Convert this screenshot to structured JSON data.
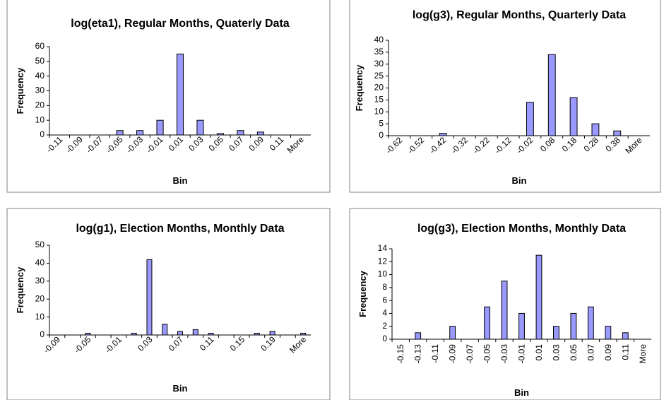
{
  "chart_data": [
    {
      "type": "bar",
      "title": "log(eta1), Regular Months, Quaterly Data",
      "xlabel": "Bin",
      "ylabel": "Frequency",
      "categories": [
        "-0.11",
        "-0.09",
        "-0.07",
        "-0.05",
        "-0.03",
        "-0.01",
        "0.01",
        "0.03",
        "0.05",
        "0.07",
        "0.09",
        "0.11",
        "More"
      ],
      "values": [
        0,
        0,
        0,
        3,
        3,
        10,
        55,
        10,
        1,
        3,
        2,
        0,
        0
      ],
      "color": "#9999ff",
      "ylim": [
        0,
        60
      ],
      "yticks": [
        0,
        10,
        20,
        30,
        40,
        50,
        60
      ]
    },
    {
      "type": "bar",
      "title": "log(g3), Regular Months, Quarterly Data",
      "xlabel": "Bin",
      "ylabel": "Frequency",
      "categories": [
        "-0.62",
        "-0.52",
        "-0.42",
        "-0.32",
        "-0.22",
        "-0.12",
        "-0.02",
        "0.08",
        "0.18",
        "0.28",
        "0.38",
        "More"
      ],
      "values": [
        0,
        0,
        1,
        0,
        0,
        0,
        14,
        34,
        16,
        5,
        2,
        0
      ],
      "color": "#9999ff",
      "ylim": [
        0,
        40
      ],
      "yticks": [
        0,
        5,
        10,
        15,
        20,
        25,
        30,
        35,
        40
      ]
    },
    {
      "type": "bar",
      "title": "log(g1), Election Months, Monthly Data",
      "xlabel": "Bin",
      "ylabel": "Frequency",
      "categories": [
        "-0.09",
        null,
        "-0.05",
        null,
        "-0.01",
        null,
        "0.03",
        null,
        "0.07",
        null,
        "0.11",
        null,
        "0.15",
        null,
        "0.19",
        null,
        "More"
      ],
      "values": [
        0,
        0,
        1,
        0,
        0,
        1,
        42,
        6,
        2,
        3,
        1,
        0,
        0,
        1,
        2,
        0,
        1
      ],
      "color": "#9999ff",
      "ylim": [
        0,
        50
      ],
      "yticks": [
        0,
        10,
        20,
        30,
        40,
        50
      ]
    },
    {
      "type": "bar",
      "title": "log(g3), Election Months, Monthly Data",
      "xlabel": "Bin",
      "ylabel": "Frequency",
      "categories": [
        "-0.15",
        "-0.13",
        "-0.11",
        "-0.09",
        "-0.07",
        "-0.05",
        "-0.03",
        "-0.01",
        "0.01",
        "0.03",
        "0.05",
        "0.07",
        "0.09",
        "0.11",
        "More"
      ],
      "values": [
        0,
        1,
        0,
        2,
        0,
        5,
        9,
        4,
        13,
        2,
        4,
        5,
        2,
        1,
        0
      ],
      "color": "#9999ff",
      "ylim": [
        0,
        14
      ],
      "yticks": [
        0,
        2,
        4,
        6,
        8,
        10,
        12,
        14
      ]
    }
  ]
}
